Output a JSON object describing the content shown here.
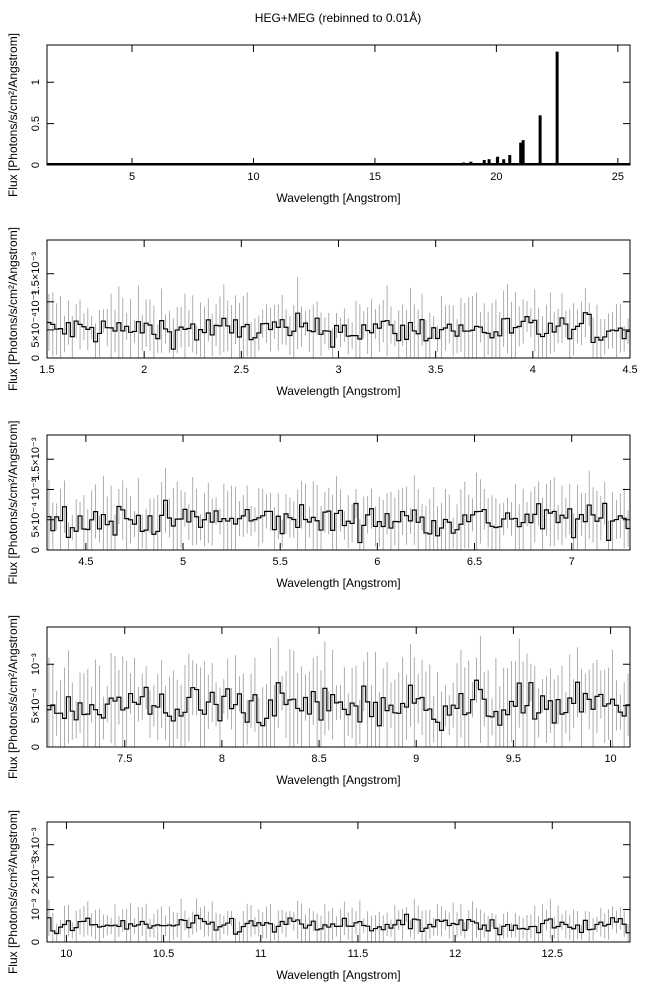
{
  "title": "HEG+MEG (rebinned to 0.01Å)",
  "chart_data": [
    {
      "type": "bar",
      "xlabel": "Wavelength [Angstrom]",
      "ylabel": "Flux [Photons/s/cm²/Angstrom]",
      "xlim": [
        1.5,
        25.5
      ],
      "ylim": [
        0,
        1.45
      ],
      "xticks": [
        5,
        10,
        15,
        20,
        25
      ],
      "xtick_labels": [
        "5",
        "10",
        "15",
        "20",
        "25"
      ],
      "yticks": [
        0,
        0.5,
        1
      ],
      "ytick_labels": [
        "0",
        "0.5",
        "1"
      ],
      "peaks": [
        {
          "x": 18.0,
          "y": 0.02
        },
        {
          "x": 18.35,
          "y": 0.02
        },
        {
          "x": 18.65,
          "y": 0.03
        },
        {
          "x": 18.95,
          "y": 0.04
        },
        {
          "x": 19.5,
          "y": 0.06
        },
        {
          "x": 19.7,
          "y": 0.07
        },
        {
          "x": 20.05,
          "y": 0.1
        },
        {
          "x": 20.3,
          "y": 0.07
        },
        {
          "x": 20.55,
          "y": 0.12
        },
        {
          "x": 21.0,
          "y": 0.27
        },
        {
          "x": 21.1,
          "y": 0.3
        },
        {
          "x": 21.8,
          "y": 0.6
        },
        {
          "x": 22.5,
          "y": 1.37
        }
      ]
    },
    {
      "type": "line",
      "xlabel": "Wavelength [Angstrom]",
      "ylabel": "Flux [Photons/s/cm²/Angstrom]",
      "xlim": [
        1.5,
        4.5
      ],
      "ylim": [
        0,
        0.0021
      ],
      "xticks": [
        1.5,
        2,
        2.5,
        3,
        3.5,
        4,
        4.5
      ],
      "xtick_labels": [
        "1.5",
        "2",
        "2.5",
        "3",
        "3.5",
        "4",
        "4.5"
      ],
      "yticks": [
        0,
        0.0005,
        0.001,
        0.0015
      ],
      "ytick_labels": [
        "0",
        "5×10⁻⁴",
        "10⁻³",
        "1.5×10⁻³"
      ],
      "mean_level": 0.0005
    },
    {
      "type": "line",
      "xlabel": "Wavelength [Angstrom]",
      "ylabel": "Flux [Photons/s/cm²/Angstrom]",
      "xlim": [
        4.3,
        7.3
      ],
      "ylim": [
        0,
        0.0019
      ],
      "xticks": [
        4.5,
        5,
        5.5,
        6,
        6.5,
        7
      ],
      "xtick_labels": [
        "4.5",
        "5",
        "5.5",
        "6",
        "6.5",
        "7"
      ],
      "yticks": [
        0,
        0.0005,
        0.001,
        0.0015
      ],
      "ytick_labels": [
        "0",
        "5×10⁻⁴",
        "10⁻³",
        "1.5×10⁻³"
      ],
      "mean_level": 0.0005
    },
    {
      "type": "line",
      "xlabel": "Wavelength [Angstrom]",
      "ylabel": "Flux [Photons/s/cm²/Angstrom]",
      "xlim": [
        7.1,
        10.1
      ],
      "ylim": [
        0,
        0.00145
      ],
      "xticks": [
        7.5,
        8,
        8.5,
        9,
        9.5,
        10
      ],
      "xtick_labels": [
        "7.5",
        "8",
        "8.5",
        "9",
        "9.5",
        "10"
      ],
      "yticks": [
        0,
        0.0005,
        0.001
      ],
      "ytick_labels": [
        "0",
        "5×10⁻⁴",
        "10⁻³"
      ],
      "mean_level": 0.0005
    },
    {
      "type": "line",
      "xlabel": "Wavelength [Angstrom]",
      "ylabel": "Flux [Photons/s/cm²/Angstrom]",
      "xlim": [
        9.9,
        12.9
      ],
      "ylim": [
        0,
        0.0037
      ],
      "xticks": [
        10,
        10.5,
        11,
        11.5,
        12,
        12.5
      ],
      "xtick_labels": [
        "10",
        "10.5",
        "11",
        "11.5",
        "12",
        "12.5"
      ],
      "yticks": [
        0,
        0.001,
        0.002,
        0.003
      ],
      "ytick_labels": [
        "0",
        "10⁻³",
        "2×10⁻³",
        "3×10⁻³"
      ],
      "mean_level": 0.0005
    }
  ]
}
